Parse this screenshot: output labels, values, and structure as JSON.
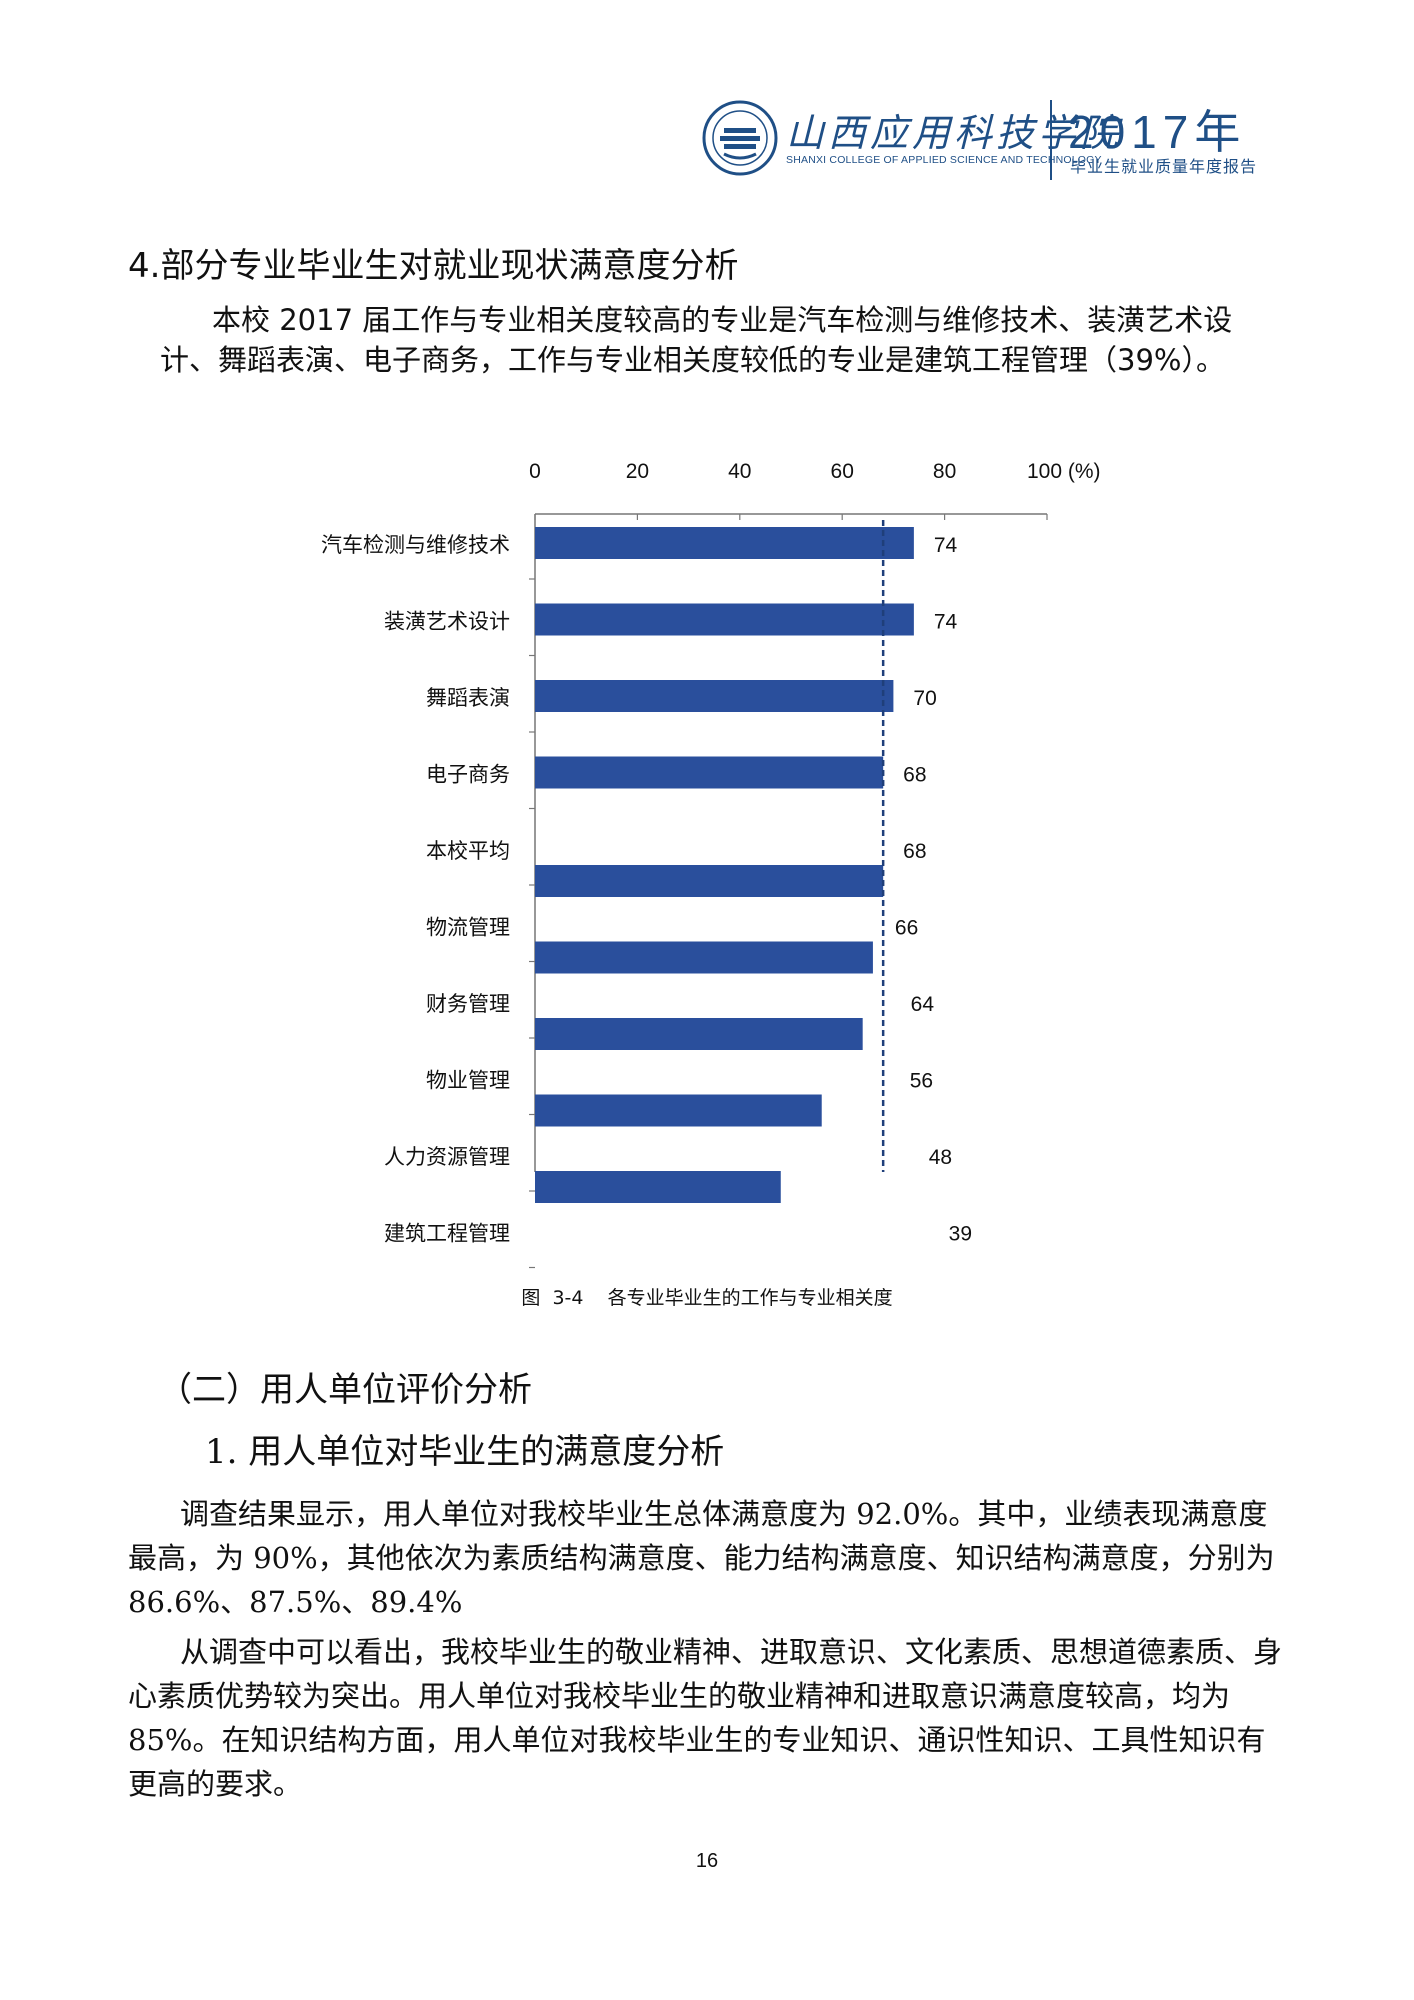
{
  "header": {
    "school_name_cn": "山西应用科技学院",
    "school_name_en": "SHANXI COLLEGE OF APPLIED SCIENCE AND TECHNOLOGY",
    "year": "2017年",
    "report_title": "毕业生就业质量年度报告",
    "brand_color": "#1f4f86"
  },
  "section": {
    "heading": "4.部分专业毕业生对就业现状满意度分析",
    "paragraph": "本校 2017 届工作与专业相关度较高的专业是汽车检测与维修技术、装潢艺术设计、舞蹈表演、电子商务，工作与专业相关度较低的专业是建筑工程管理（39%）。"
  },
  "chart_data": {
    "type": "bar",
    "orientation": "horizontal",
    "categories": [
      "汽车检测与维修技术",
      "装潢艺术设计",
      "舞蹈表演",
      "电子商务",
      "本校平均",
      "物流管理",
      "财务管理",
      "物业管理",
      "人力资源管理",
      "建筑工程管理"
    ],
    "values": [
      74,
      74,
      70,
      68,
      68,
      66,
      64,
      56,
      48,
      39
    ],
    "value_labels": [
      "74",
      "74",
      "70",
      "68",
      "68",
      "66",
      "64",
      "56",
      "48",
      "39"
    ],
    "x_ticks": [
      "0",
      "20",
      "40",
      "60",
      "80",
      "100 (%)"
    ],
    "xlim": [
      0,
      100
    ],
    "reference_line": {
      "value": 68,
      "style": "dashed"
    },
    "bar_color": "#2a4f9c",
    "caption": "图  3-4    各专业毕业生的工作与专业相关度"
  },
  "section2": {
    "heading": "（二）用人单位评价分析",
    "subheading": "1. 用人单位对毕业生的满意度分析",
    "paragraph1": "调查结果显示，用人单位对我校毕业生总体满意度为 92.0%。其中，业绩表现满意度最高，为 90%，其他依次为素质结构满意度、能力结构满意度、知识结构满意度，分别为 86.6%、87.5%、89.4%",
    "paragraph2": "从调查中可以看出，我校毕业生的敬业精神、进取意识、文化素质、思想道德素质、身心素质优势较为突出。用人单位对我校毕业生的敬业精神和进取意识满意度较高，均为 85%。在知识结构方面，用人单位对我校毕业生的专业知识、通识性知识、工具性知识有更高的要求。"
  },
  "page": {
    "number": "16"
  }
}
